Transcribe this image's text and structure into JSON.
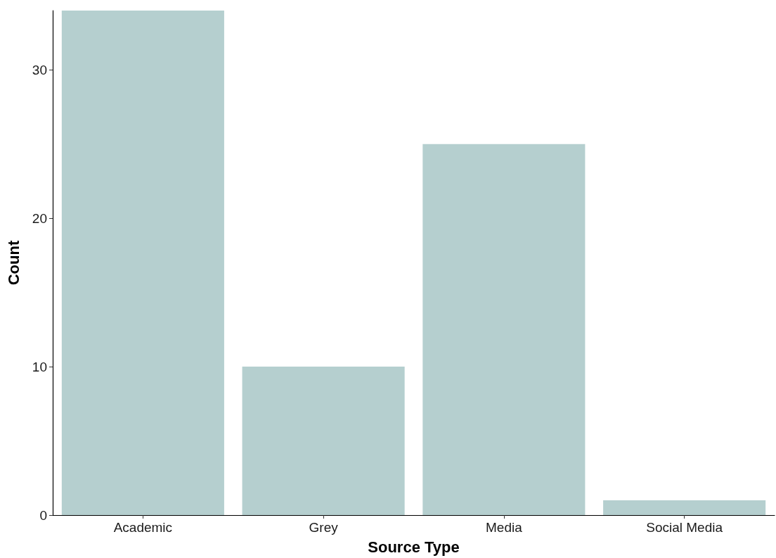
{
  "chart_data": {
    "type": "bar",
    "xlabel": "Source Type",
    "ylabel": "Count",
    "categories": [
      "Academic",
      "Grey",
      "Media",
      "Social Media"
    ],
    "values": [
      34,
      10,
      25,
      1
    ],
    "color": "#b5cfcf",
    "ylim": [
      0,
      34
    ],
    "yticks": [
      0,
      10,
      20,
      30
    ],
    "grid": false
  }
}
